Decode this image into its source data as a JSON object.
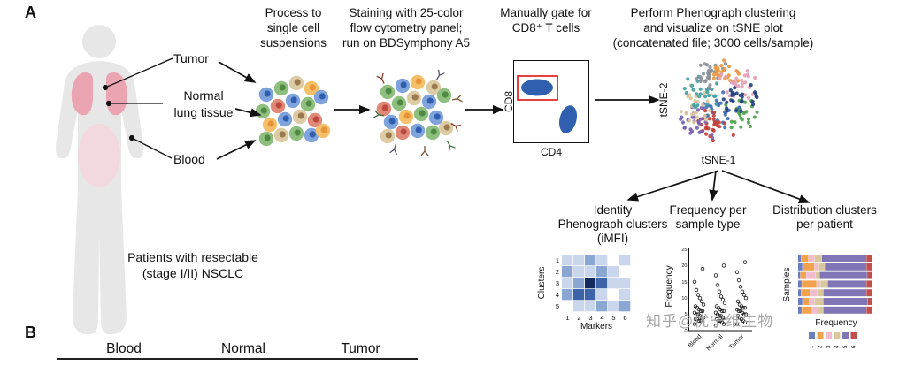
{
  "panels": {
    "a": "A",
    "b": "B"
  },
  "patient": {
    "caption": "Patients with resectable\n(stage I/II) NSCLC",
    "tumor_label": "Tumor",
    "normal_label": "Normal\nlung tissue",
    "blood_label": "Blood"
  },
  "steps": {
    "process": "Process to\nsingle cell\nsuspensions",
    "staining": "Staining with 25-color\nflow cytometry panel;\nrun on BDSymphony A5",
    "gating": "Manually gate for\nCD8⁺ T cells",
    "clustering": "Perform Phenograph clustering\nand visualize on tSNE plot\n(concatenated file; 3000 cells/sample)"
  },
  "analyses": {
    "imfi": "Identity\nPhenograph clusters\n(iMFI)",
    "frequency": "Frequency per\nsample type",
    "distribution": "Distribution clusters\nper patient"
  },
  "watermark": "知乎@优宁维生物",
  "table_b": {
    "headers": [
      "Blood",
      "Normal",
      "Tumor"
    ]
  },
  "chart_data": [
    {
      "id": "cd8_gating_plot",
      "type": "scatter",
      "xlabel": "CD4",
      "ylabel": "CD8",
      "note": "Two lymphocyte populations; CD8+ population enclosed by red gate",
      "population_color": "#2f5fae",
      "gate_color": "#e02020"
    },
    {
      "id": "tsne_plot",
      "type": "scatter",
      "xlabel": "tSNE-1",
      "ylabel": "tSNE-2",
      "note": "Concatenated cells colored by Phenograph cluster",
      "clusters": [
        "#4f9e4f",
        "#3f6db5",
        "#c23b33",
        "#7a5fb0",
        "#d8c49a",
        "#3fa0a0",
        "#8a8f98",
        "#e8973f",
        "#e2a0b8",
        "#22407f"
      ]
    },
    {
      "id": "imfi_heatmap",
      "type": "heatmap",
      "ylabel": "Clusters",
      "xlabel": "Markers",
      "rows": [
        "1",
        "2",
        "3",
        "4",
        "5"
      ],
      "cols": [
        "1",
        "2",
        "3",
        "4",
        "5",
        "6"
      ],
      "palette": [
        "#ffffff",
        "#c9d6ec",
        "#8aa6d2",
        "#3d63a8",
        "#132a5e"
      ],
      "values": [
        [
          1,
          1,
          2,
          1,
          0,
          1
        ],
        [
          2,
          1,
          1,
          2,
          1,
          0
        ],
        [
          1,
          2,
          4,
          3,
          1,
          1
        ],
        [
          2,
          3,
          3,
          1,
          0,
          1
        ],
        [
          0,
          1,
          1,
          2,
          1,
          2
        ]
      ]
    },
    {
      "id": "frequency_dotplot",
      "type": "scatter",
      "ylabel": "Frequency",
      "ylim": [
        0,
        25
      ],
      "yticks": [
        0,
        5,
        10,
        15,
        20,
        25
      ],
      "categories": [
        "Blood",
        "Normal",
        "Tumor"
      ],
      "series": {
        "Blood": [
          2,
          2.5,
          3,
          3,
          3.5,
          3.5,
          4,
          4,
          4.5,
          5,
          5,
          5.5,
          6,
          6,
          6.5,
          7,
          7.5,
          8,
          9,
          10,
          11,
          12.5,
          15,
          19
        ],
        "Normal": [
          1.5,
          2,
          2.5,
          3,
          3,
          3.5,
          4,
          4,
          4.5,
          4.5,
          5,
          5.5,
          6,
          6,
          6.5,
          7,
          7.5,
          8.5,
          9.5,
          10.5,
          12,
          14,
          17,
          20
        ],
        "Tumor": [
          2,
          2.5,
          3,
          3.5,
          4,
          4.5,
          5,
          5,
          5.5,
          6,
          6,
          6.5,
          7,
          7,
          7.5,
          8,
          9,
          10,
          11,
          12,
          13.5,
          15.5,
          18,
          21
        ]
      }
    },
    {
      "id": "cluster_distribution",
      "type": "bar",
      "orientation": "horizontal-stacked",
      "ylabel": "Samples",
      "xlabel": "Frequency",
      "legend": [
        "1",
        "2",
        "3",
        "4",
        "5",
        "6"
      ],
      "colors": [
        "#6b7fc0",
        "#f0a24c",
        "#f2bcd0",
        "#d9c89e",
        "#8075b5",
        "#c0504d"
      ],
      "bars": [
        [
          0.04,
          0.1,
          0.08,
          0.1,
          0.6,
          0.08
        ],
        [
          0.06,
          0.16,
          0.06,
          0.08,
          0.56,
          0.08
        ],
        [
          0.03,
          0.08,
          0.12,
          0.06,
          0.64,
          0.07
        ],
        [
          0.05,
          0.2,
          0.05,
          0.1,
          0.52,
          0.08
        ],
        [
          0.04,
          0.12,
          0.1,
          0.08,
          0.58,
          0.08
        ],
        [
          0.06,
          0.09,
          0.07,
          0.12,
          0.6,
          0.06
        ],
        [
          0.05,
          0.14,
          0.08,
          0.07,
          0.58,
          0.08
        ]
      ]
    }
  ]
}
